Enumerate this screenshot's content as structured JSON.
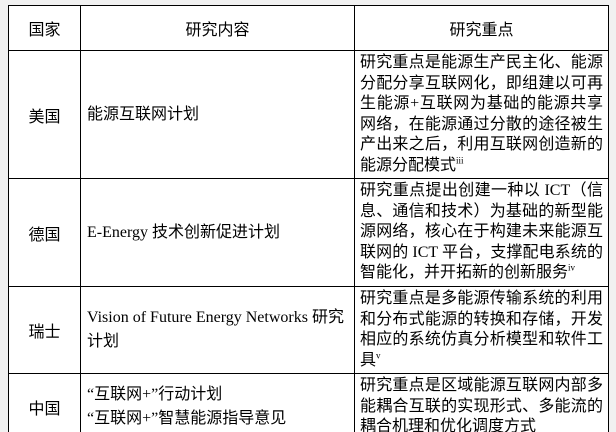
{
  "table": {
    "headers": [
      "国家",
      "研究内容",
      "研究重点"
    ],
    "rows": [
      {
        "country": "美国",
        "content": "能源互联网计划",
        "content2": "",
        "focus": "研究重点是能源生产民主化、能源分配分享互联网化，即组建以可再生能源+互联网为基础的能源共享网络，在能源通过分散的途径被生产出来之后，利用互联网创造新的能源分配模式",
        "focus_sup": "iii"
      },
      {
        "country": "德国",
        "content": "E-Energy 技术创新促进计划",
        "content2": "",
        "focus": "研究重点提出创建一种以 ICT（信息、通信和技术）为基础的新型能源网络，核心在于构建未来能源互联网的 ICT 平台，支撑配电系统的智能化，并开拓新的创新服务",
        "focus_sup": "iv"
      },
      {
        "country": "瑞士",
        "content": "Vision of Future Energy Networks 研究计划",
        "content2": "",
        "focus": "研究重点是多能源传输系统的利用和分布式能源的转换和存储，开发相应的系统仿真分析模型和软件工具",
        "focus_sup": "v"
      },
      {
        "country": "中国",
        "content": "“互联网+”行动计划",
        "content2": "“互联网+”智慧能源指导意见",
        "focus": "研究重点是区域能源互联网内部多能耦合互联的实现形式、多能流的耦合机理和优化调度方式",
        "focus_sup": ""
      }
    ]
  }
}
